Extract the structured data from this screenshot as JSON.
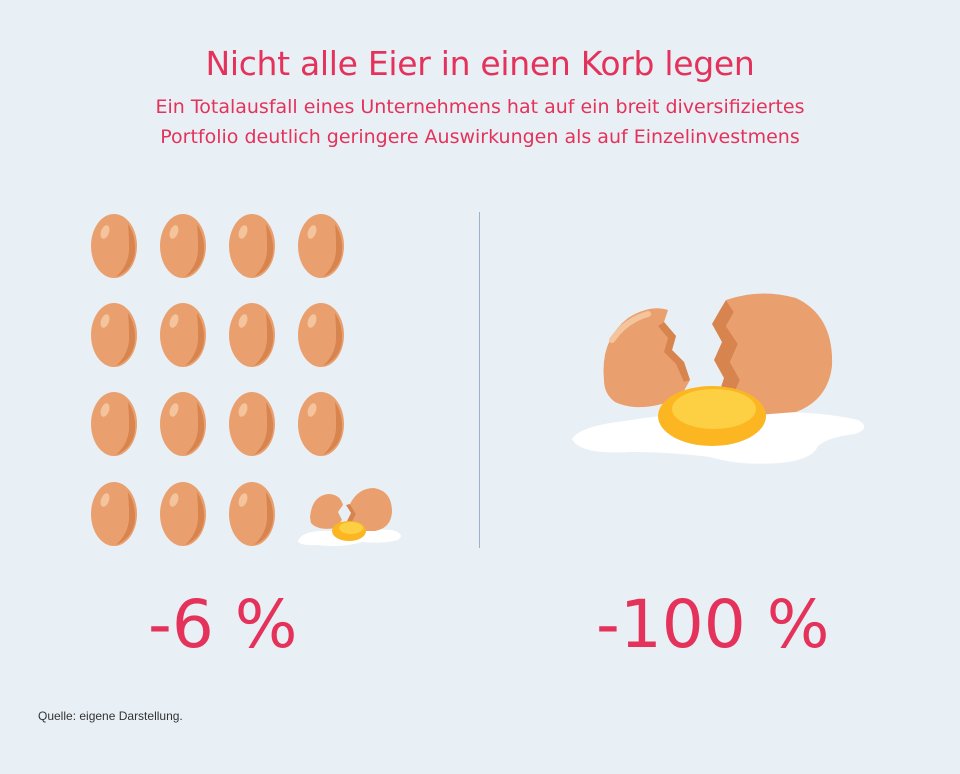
{
  "header": {
    "title": "Nicht alle Eier in einen Korb legen",
    "subtitle_line1": "Ein Totalausfall eines Unternehmens hat auf ein breit diversifiziertes",
    "subtitle_line2": "Portfolio deutlich geringere Auswirkungen als auf Einzelinvestmens"
  },
  "portfolio": {
    "egg_count": 16,
    "broken_count": 1,
    "value": "-6 %"
  },
  "single": {
    "value": "-100 %"
  },
  "footer": {
    "source": "Quelle: eigene Darstellung."
  },
  "colors": {
    "accent": "#e4325a",
    "background": "#e8f0f6",
    "egg": "#eaa06e",
    "egg_shade": "#d8844f",
    "yolk": "#fbb622",
    "white": "#ffffff"
  },
  "icons": {
    "egg": "egg-icon",
    "broken_egg": "broken-egg-icon",
    "fried_egg": "fried-egg-icon"
  }
}
